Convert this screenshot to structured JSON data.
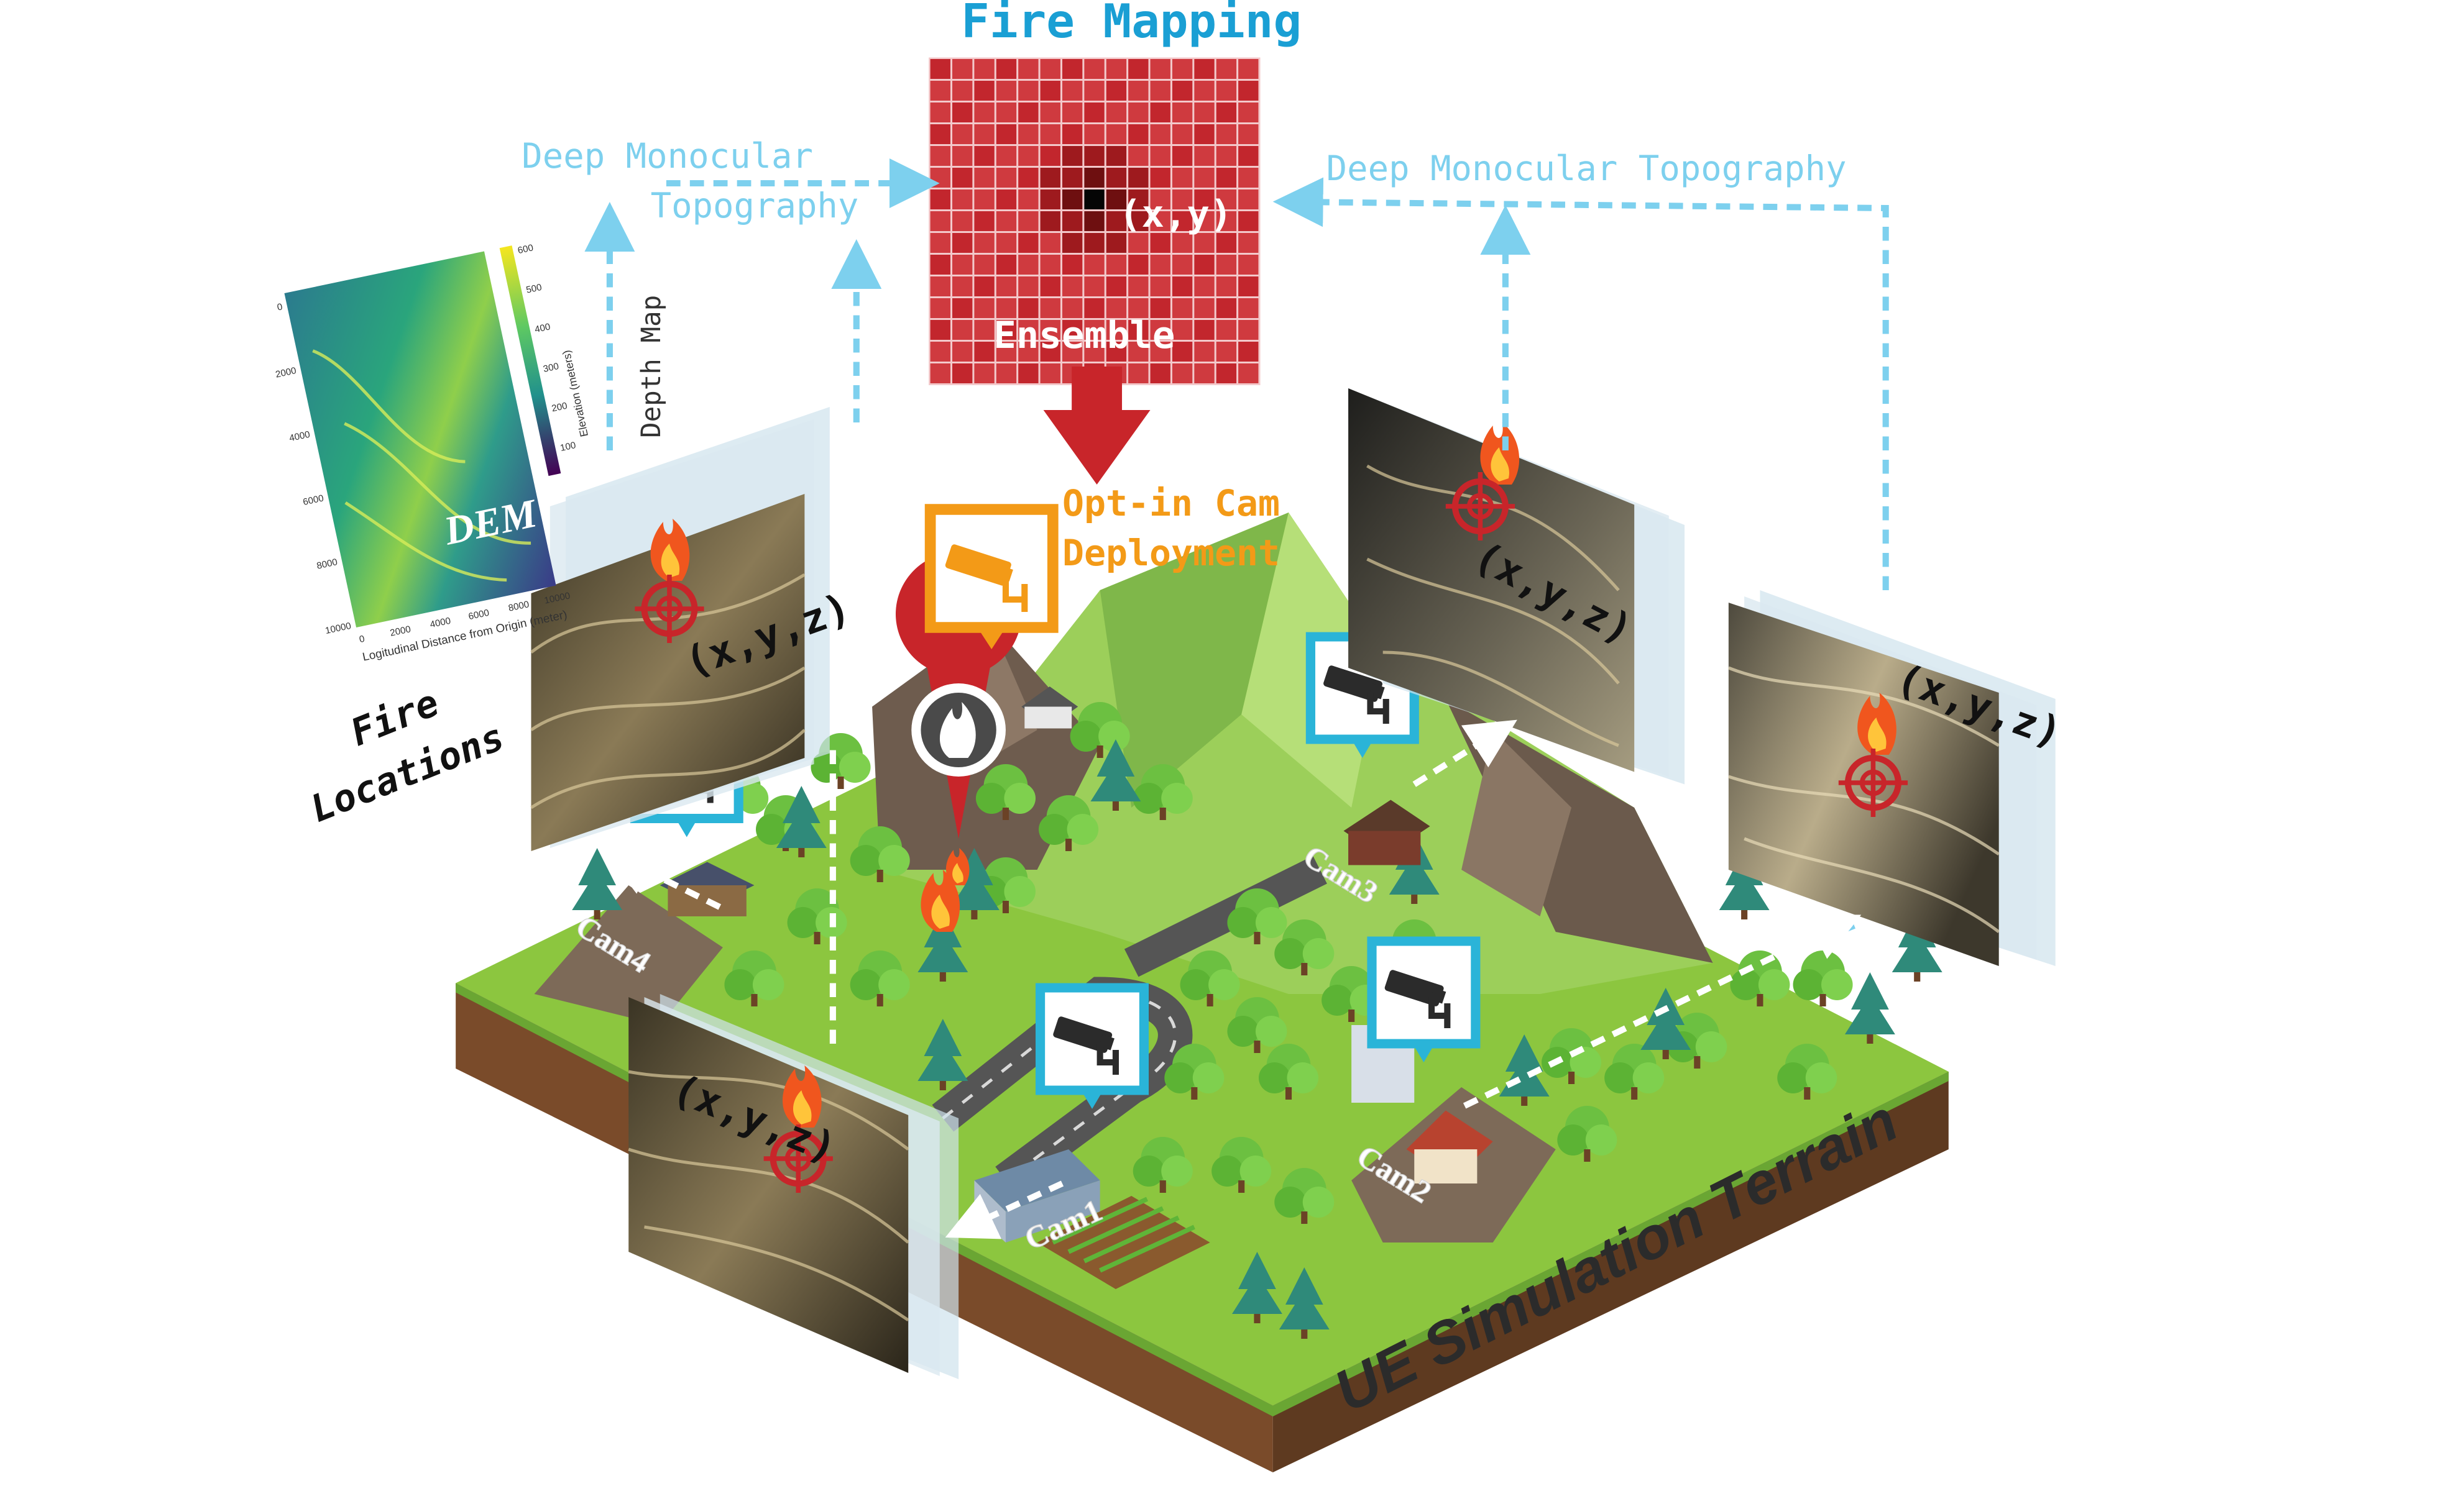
{
  "title": "Fire Mapping",
  "fire_map": {
    "xy_label": "(x,y)",
    "ensemble_label": "Ensemble"
  },
  "topography_left": {
    "line1": "Deep Monocular",
    "line2": "Topography"
  },
  "topography_right": "Deep Monocular Topography",
  "depth_map_label": "Depth Map",
  "dem": {
    "label": "DEM",
    "xlabel": "Logitudinal Distance from Origin (meter)",
    "ylabel": "Elevation (meters)",
    "x_ticks": [
      "0",
      "2000",
      "4000",
      "6000",
      "8000",
      "10000"
    ],
    "y_ticks": [
      "0",
      "2000",
      "4000",
      "6000",
      "8000",
      "10000"
    ],
    "colorbar_ticks": [
      "600",
      "500",
      "400",
      "300",
      "200",
      "100"
    ]
  },
  "fire_locations": {
    "line1": "Fire",
    "line2": "Locations"
  },
  "deployment": {
    "line1": "Opt-in Cam",
    "line2": "Deployment"
  },
  "xyz_label": "(x,y,z)",
  "cameras": {
    "cam1": "Cam1",
    "cam2": "Cam2",
    "cam3": "Cam3",
    "cam4": "Cam4"
  },
  "terrain_label": "UE Simulation Terrain",
  "colors": {
    "title": "#1a9fd4",
    "arrow_blue": "#7dd0ee",
    "fire_grid": "#c9252d",
    "deployment": "#f39a17",
    "marker_red": "#c8252a",
    "grass": "#8cc63f",
    "soil": "#7a4b2a"
  }
}
